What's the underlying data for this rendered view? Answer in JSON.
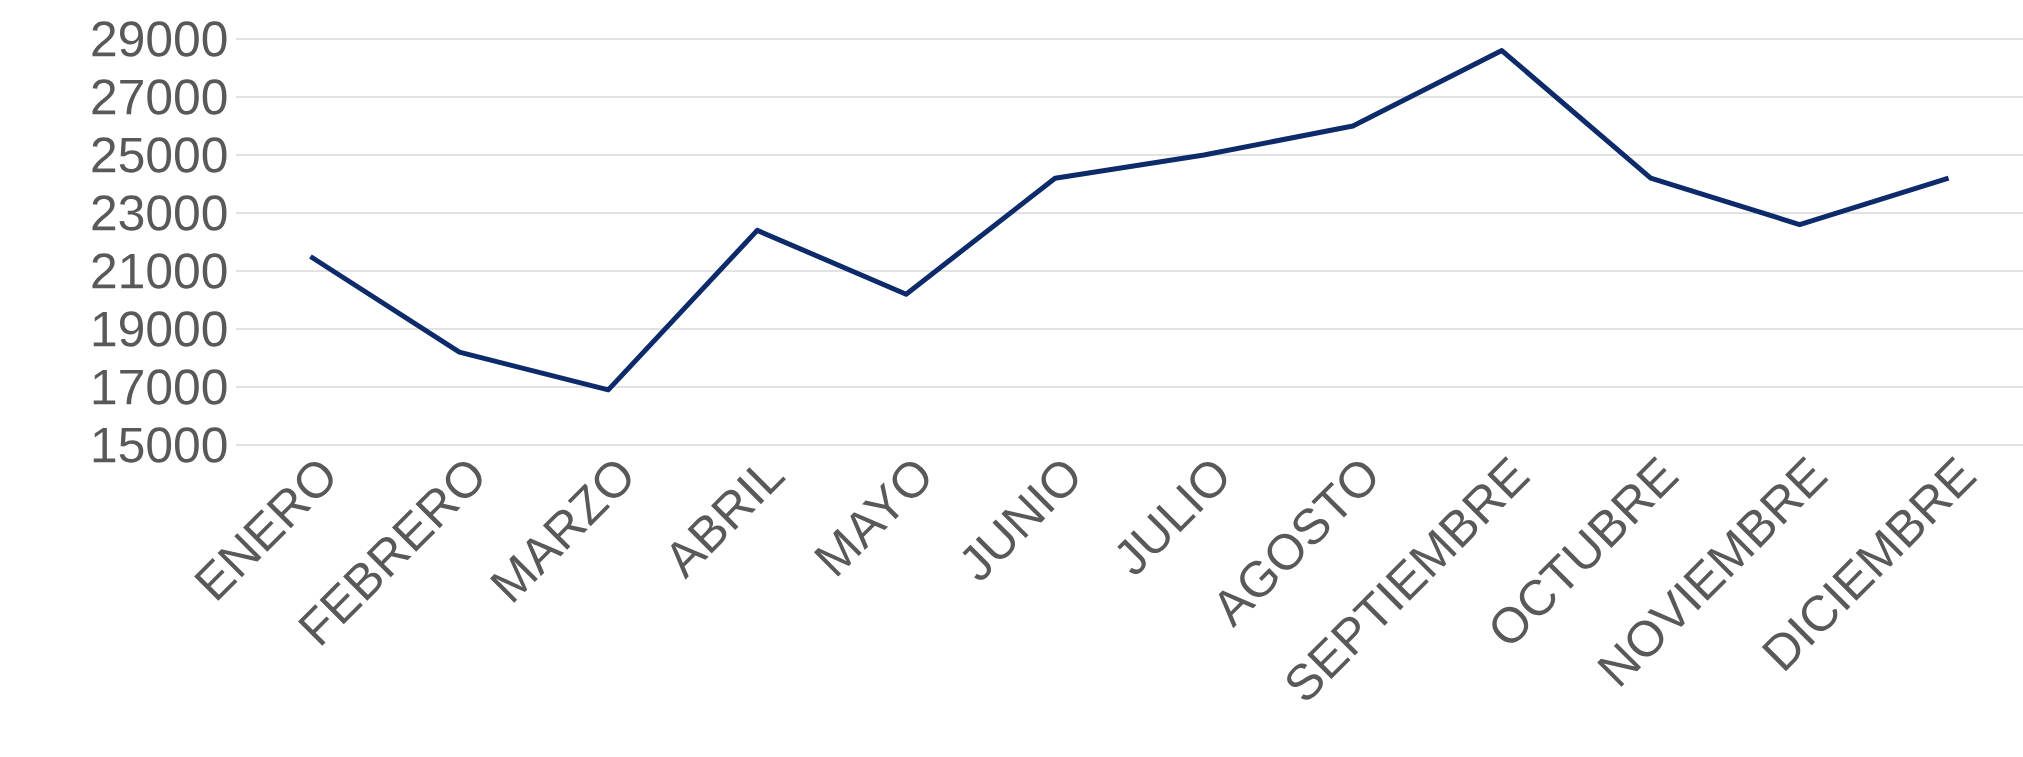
{
  "chart_data": {
    "type": "line",
    "categories": [
      "ENERO",
      "FEBRERO",
      "MARZO",
      "ABRIL",
      "MAYO",
      "JUNIO",
      "JULIO",
      "AGOSTO",
      "SEPTIEMBRE",
      "OCTUBRE",
      "NOVIEMBRE",
      "DICIEMBRE"
    ],
    "series": [
      {
        "color": "#0d2a6b",
        "values": [
          21500,
          18200,
          16900,
          22400,
          20200,
          24200,
          25000,
          26000,
          28600,
          24200,
          22600,
          24200
        ]
      }
    ],
    "ylim": [
      15000,
      29000
    ],
    "yticks": [
      15000,
      17000,
      19000,
      21000,
      23000,
      25000,
      27000,
      29000
    ],
    "grid": "y",
    "marker": "none",
    "line_style": "solid"
  }
}
